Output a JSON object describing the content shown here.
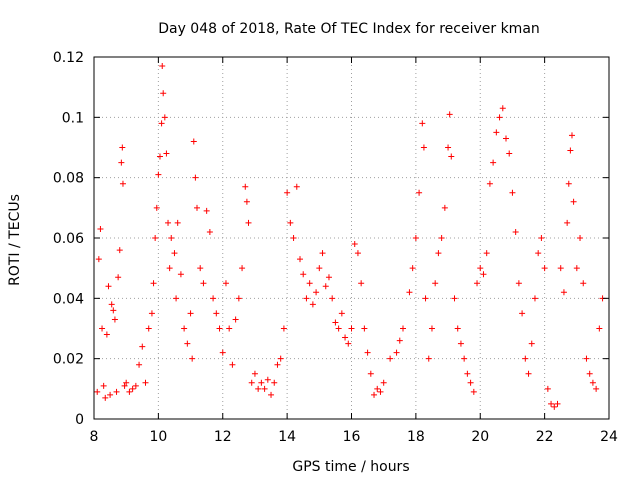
{
  "chart_data": {
    "type": "scatter",
    "title": "Day 048 of 2018, Rate Of TEC Index for receiver kman",
    "xlabel": "GPS time / hours",
    "ylabel": "ROTI / TECUs",
    "xlim": [
      8,
      24
    ],
    "ylim": [
      0,
      0.12
    ],
    "xticks": [
      8,
      10,
      12,
      14,
      16,
      18,
      20,
      22,
      24
    ],
    "yticks": [
      0,
      0.02,
      0.04,
      0.06,
      0.08,
      0.1,
      0.12
    ],
    "xtick_labels": [
      "8",
      "10",
      "12",
      "14",
      "16",
      "18",
      "20",
      "22",
      "24"
    ],
    "ytick_labels": [
      "0",
      "0.02",
      "0.04",
      "0.06",
      "0.08",
      "0.1",
      "0.12"
    ],
    "grid": true,
    "marker": "+",
    "color": "#ff0000",
    "series": [
      {
        "name": "ROTI",
        "points": [
          [
            8.1,
            0.009
          ],
          [
            8.15,
            0.053
          ],
          [
            8.2,
            0.063
          ],
          [
            8.25,
            0.03
          ],
          [
            8.3,
            0.011
          ],
          [
            8.35,
            0.007
          ],
          [
            8.4,
            0.028
          ],
          [
            8.45,
            0.044
          ],
          [
            8.5,
            0.008
          ],
          [
            8.55,
            0.038
          ],
          [
            8.6,
            0.036
          ],
          [
            8.65,
            0.033
          ],
          [
            8.7,
            0.009
          ],
          [
            8.75,
            0.047
          ],
          [
            8.8,
            0.056
          ],
          [
            8.85,
            0.085
          ],
          [
            8.88,
            0.09
          ],
          [
            8.9,
            0.078
          ],
          [
            8.95,
            0.011
          ],
          [
            9.0,
            0.012
          ],
          [
            9.1,
            0.009
          ],
          [
            9.2,
            0.01
          ],
          [
            9.3,
            0.011
          ],
          [
            9.4,
            0.018
          ],
          [
            9.5,
            0.024
          ],
          [
            9.6,
            0.012
          ],
          [
            9.7,
            0.03
          ],
          [
            9.8,
            0.035
          ],
          [
            9.85,
            0.045
          ],
          [
            9.9,
            0.06
          ],
          [
            9.95,
            0.07
          ],
          [
            10.0,
            0.081
          ],
          [
            10.05,
            0.087
          ],
          [
            10.1,
            0.098
          ],
          [
            10.12,
            0.117
          ],
          [
            10.15,
            0.108
          ],
          [
            10.2,
            0.1
          ],
          [
            10.25,
            0.088
          ],
          [
            10.3,
            0.065
          ],
          [
            10.35,
            0.05
          ],
          [
            10.4,
            0.06
          ],
          [
            10.5,
            0.055
          ],
          [
            10.55,
            0.04
          ],
          [
            10.6,
            0.065
          ],
          [
            10.7,
            0.048
          ],
          [
            10.8,
            0.03
          ],
          [
            10.9,
            0.025
          ],
          [
            11.0,
            0.035
          ],
          [
            11.05,
            0.02
          ],
          [
            11.1,
            0.092
          ],
          [
            11.15,
            0.08
          ],
          [
            11.2,
            0.07
          ],
          [
            11.3,
            0.05
          ],
          [
            11.4,
            0.045
          ],
          [
            11.5,
            0.069
          ],
          [
            11.6,
            0.062
          ],
          [
            11.7,
            0.04
          ],
          [
            11.8,
            0.035
          ],
          [
            11.9,
            0.03
          ],
          [
            12.0,
            0.022
          ],
          [
            12.1,
            0.045
          ],
          [
            12.2,
            0.03
          ],
          [
            12.3,
            0.018
          ],
          [
            12.4,
            0.033
          ],
          [
            12.5,
            0.04
          ],
          [
            12.6,
            0.05
          ],
          [
            12.7,
            0.077
          ],
          [
            12.75,
            0.072
          ],
          [
            12.8,
            0.065
          ],
          [
            12.9,
            0.012
          ],
          [
            13.0,
            0.015
          ],
          [
            13.1,
            0.01
          ],
          [
            13.2,
            0.012
          ],
          [
            13.3,
            0.01
          ],
          [
            13.4,
            0.013
          ],
          [
            13.5,
            0.008
          ],
          [
            13.6,
            0.012
          ],
          [
            13.7,
            0.018
          ],
          [
            13.8,
            0.02
          ],
          [
            13.9,
            0.03
          ],
          [
            14.0,
            0.075
          ],
          [
            14.1,
            0.065
          ],
          [
            14.2,
            0.06
          ],
          [
            14.3,
            0.077
          ],
          [
            14.4,
            0.053
          ],
          [
            14.5,
            0.048
          ],
          [
            14.6,
            0.04
          ],
          [
            14.7,
            0.045
          ],
          [
            14.8,
            0.038
          ],
          [
            14.9,
            0.042
          ],
          [
            15.0,
            0.05
          ],
          [
            15.1,
            0.055
          ],
          [
            15.2,
            0.044
          ],
          [
            15.3,
            0.047
          ],
          [
            15.4,
            0.04
          ],
          [
            15.5,
            0.032
          ],
          [
            15.6,
            0.03
          ],
          [
            15.7,
            0.035
          ],
          [
            15.8,
            0.027
          ],
          [
            15.9,
            0.025
          ],
          [
            16.0,
            0.03
          ],
          [
            16.1,
            0.058
          ],
          [
            16.2,
            0.055
          ],
          [
            16.3,
            0.045
          ],
          [
            16.4,
            0.03
          ],
          [
            16.5,
            0.022
          ],
          [
            16.6,
            0.015
          ],
          [
            16.7,
            0.008
          ],
          [
            16.8,
            0.01
          ],
          [
            16.9,
            0.009
          ],
          [
            17.0,
            0.012
          ],
          [
            17.2,
            0.02
          ],
          [
            17.4,
            0.022
          ],
          [
            17.5,
            0.026
          ],
          [
            17.6,
            0.03
          ],
          [
            17.8,
            0.042
          ],
          [
            17.9,
            0.05
          ],
          [
            18.0,
            0.06
          ],
          [
            18.1,
            0.075
          ],
          [
            18.2,
            0.098
          ],
          [
            18.25,
            0.09
          ],
          [
            18.3,
            0.04
          ],
          [
            18.4,
            0.02
          ],
          [
            18.5,
            0.03
          ],
          [
            18.6,
            0.045
          ],
          [
            18.7,
            0.055
          ],
          [
            18.8,
            0.06
          ],
          [
            18.9,
            0.07
          ],
          [
            19.0,
            0.09
          ],
          [
            19.05,
            0.101
          ],
          [
            19.1,
            0.087
          ],
          [
            19.2,
            0.04
          ],
          [
            19.3,
            0.03
          ],
          [
            19.4,
            0.025
          ],
          [
            19.5,
            0.02
          ],
          [
            19.6,
            0.015
          ],
          [
            19.7,
            0.012
          ],
          [
            19.8,
            0.009
          ],
          [
            19.9,
            0.045
          ],
          [
            20.0,
            0.05
          ],
          [
            20.1,
            0.048
          ],
          [
            20.2,
            0.055
          ],
          [
            20.3,
            0.078
          ],
          [
            20.4,
            0.085
          ],
          [
            20.5,
            0.095
          ],
          [
            20.6,
            0.1
          ],
          [
            20.7,
            0.103
          ],
          [
            20.8,
            0.093
          ],
          [
            20.9,
            0.088
          ],
          [
            21.0,
            0.075
          ],
          [
            21.1,
            0.062
          ],
          [
            21.2,
            0.045
          ],
          [
            21.3,
            0.035
          ],
          [
            21.4,
            0.02
          ],
          [
            21.5,
            0.015
          ],
          [
            21.6,
            0.025
          ],
          [
            21.7,
            0.04
          ],
          [
            21.8,
            0.055
          ],
          [
            21.9,
            0.06
          ],
          [
            22.0,
            0.05
          ],
          [
            22.1,
            0.01
          ],
          [
            22.2,
            0.005
          ],
          [
            22.3,
            0.004
          ],
          [
            22.4,
            0.005
          ],
          [
            22.5,
            0.05
          ],
          [
            22.6,
            0.042
          ],
          [
            22.7,
            0.065
          ],
          [
            22.75,
            0.078
          ],
          [
            22.8,
            0.089
          ],
          [
            22.85,
            0.094
          ],
          [
            22.9,
            0.072
          ],
          [
            23.0,
            0.05
          ],
          [
            23.1,
            0.06
          ],
          [
            23.2,
            0.045
          ],
          [
            23.3,
            0.02
          ],
          [
            23.4,
            0.015
          ],
          [
            23.5,
            0.012
          ],
          [
            23.6,
            0.01
          ],
          [
            23.7,
            0.03
          ],
          [
            23.8,
            0.04
          ]
        ]
      }
    ]
  }
}
